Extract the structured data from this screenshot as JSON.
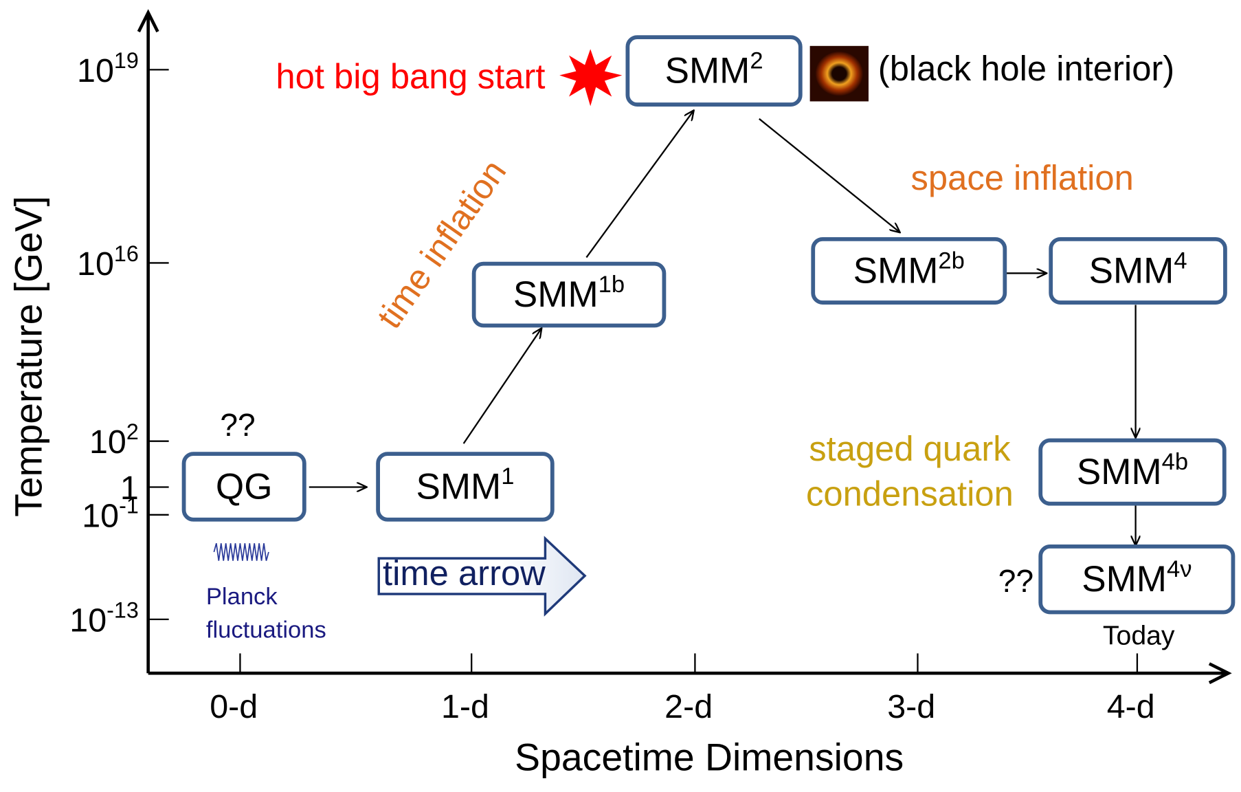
{
  "y_axis": {
    "title": "Temperature [GeV]",
    "ticks": [
      {
        "base": "10",
        "exp": "19"
      },
      {
        "base": "10",
        "exp": "16"
      },
      {
        "base": "10",
        "exp": "2"
      },
      {
        "base": "1"
      },
      {
        "base": "10",
        "exp": "-1"
      },
      {
        "base": "10",
        "exp": "-13"
      }
    ]
  },
  "x_axis": {
    "title": "Spacetime Dimensions",
    "ticks": [
      "0-d",
      "1-d",
      "2-d",
      "3-d",
      "4-d"
    ]
  },
  "nodes": [
    {
      "label": "QG"
    },
    {
      "label": "SMM",
      "sup": "1"
    },
    {
      "label": "SMM",
      "sup": "1b"
    },
    {
      "label": "SMM",
      "sup": "2"
    },
    {
      "label": "SMM",
      "sup": "2b"
    },
    {
      "label": "SMM",
      "sup": "4"
    },
    {
      "label": "SMM",
      "sup": "4b"
    },
    {
      "label": "SMM",
      "sup": "4ν"
    }
  ],
  "annotations": {
    "hot_big_bang": "hot big bang start",
    "black_hole": "(black hole interior)",
    "time_inflation": "time inflation",
    "space_inflation": "space inflation",
    "quark": [
      "staged quark",
      "condensation"
    ],
    "question_qg": "??",
    "question_today": "??",
    "planck": [
      "Planck",
      "fluctuations"
    ],
    "time_arrow": "time arrow",
    "today": "Today"
  }
}
